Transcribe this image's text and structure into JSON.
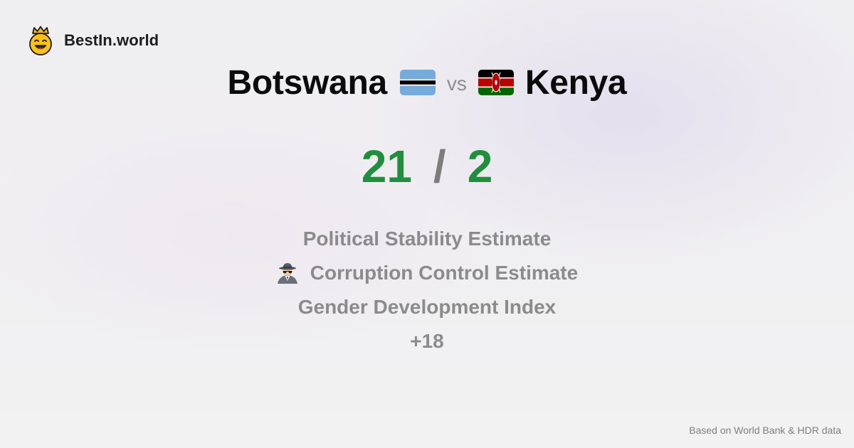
{
  "brand": {
    "name": "BestIn.world",
    "logo_icon": "crowned-smiley-icon"
  },
  "comparison": {
    "left_country": "Botswana",
    "left_flag_icon": "botswana-flag-icon",
    "separator": "vs",
    "right_country": "Kenya",
    "right_flag_icon": "kenya-flag-icon"
  },
  "score": {
    "left": "21",
    "divider": "/",
    "right": "2",
    "color": "#1f8f3d"
  },
  "metrics": [
    {
      "label": "Political Stability Estimate",
      "icon": ""
    },
    {
      "label": "Corruption Control Estimate",
      "icon": "detective-icon"
    },
    {
      "label": "Gender Development Index",
      "icon": ""
    },
    {
      "label": "+18",
      "icon": ""
    }
  ],
  "footer": {
    "source": "Based on World Bank & HDR data"
  }
}
